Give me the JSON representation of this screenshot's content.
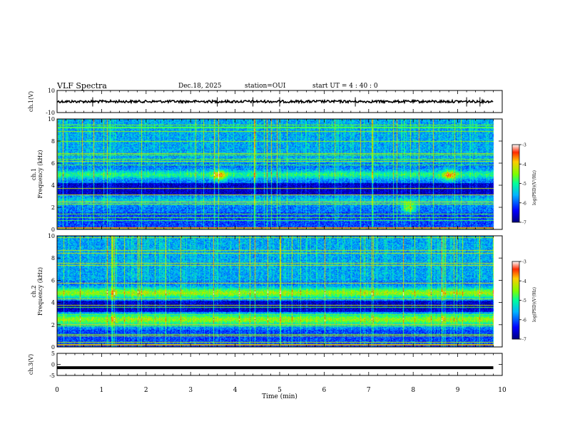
{
  "header": {
    "title": "VLF Spectra",
    "date": "Dec.18, 2025",
    "station": "station=OUI",
    "start_ut": "start  UT =  4 : 40 : 0"
  },
  "chart_data": [
    {
      "type": "line",
      "name": "ch1-waveform",
      "ylabel": "ch.1(V)",
      "ylim": [
        -10,
        10
      ],
      "yticks": [
        10,
        -10
      ],
      "xlim": [
        0,
        10
      ],
      "baseline_v": 0,
      "spike_minutes": [
        0.8,
        3.6,
        4.4,
        5.0,
        6.7,
        9.2,
        9.5
      ]
    },
    {
      "type": "heatmap",
      "name": "ch1-spectrogram",
      "ylabel_line1": "ch.1",
      "ylabel_line2": "Frequency (kHz)",
      "ylim": [
        0,
        10
      ],
      "yticks": [
        0,
        2,
        4,
        6,
        8,
        10
      ],
      "xlim": [
        0,
        10
      ],
      "data_end_min": 9.8,
      "bands_khz": [
        5.0,
        2.6
      ],
      "emission_blobs": [
        {
          "t_min": 3.65,
          "f_khz": 4.9
        },
        {
          "t_min": 7.9,
          "f_khz": 2.0
        },
        {
          "t_min": 8.8,
          "f_khz": 4.9
        }
      ],
      "colorbar": {
        "label": "log(PSD)(V²/Hz)",
        "range": [
          -7,
          -3
        ],
        "ticks": [
          "-3",
          "-4",
          "-5",
          "-6",
          "-7"
        ]
      }
    },
    {
      "type": "heatmap",
      "name": "ch2-spectrogram",
      "ylabel_line1": "ch.2",
      "ylabel_line2": "Frequency (kHz)",
      "ylim": [
        0,
        10
      ],
      "yticks": [
        0,
        2,
        4,
        6,
        8,
        10
      ],
      "xlim": [
        0,
        10
      ],
      "data_end_min": 9.8,
      "bands_khz": [
        4.9,
        2.5
      ],
      "colorbar": {
        "label": "log(PSD)(V²/Hz)",
        "range": [
          -7,
          -3
        ],
        "ticks": [
          "-3",
          "-4",
          "-5",
          "-6",
          "-7"
        ]
      }
    },
    {
      "type": "line",
      "name": "ch3-waveform",
      "ylabel": "ch.3(V)",
      "ylim": [
        -5,
        5
      ],
      "yticks": [
        5,
        0,
        -5
      ],
      "xlim": [
        0,
        10
      ],
      "level_v": -1.5
    }
  ],
  "x_axis": {
    "label": "Time (min)",
    "range": [
      0,
      10
    ],
    "ticks": [
      "0",
      "1",
      "2",
      "3",
      "4",
      "5",
      "6",
      "7",
      "8",
      "9",
      "10"
    ]
  }
}
